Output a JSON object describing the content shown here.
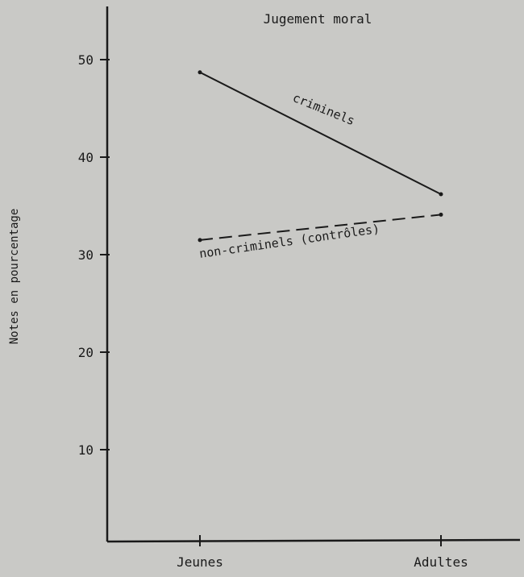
{
  "chart_data": {
    "type": "line",
    "title": "Jugement moral",
    "ylabel": "Notes en pourcentage",
    "xlabel": "",
    "categories": [
      "Jeunes",
      "Adultes"
    ],
    "yticks": [
      10,
      20,
      30,
      40,
      50
    ],
    "ylim": [
      3,
      55
    ],
    "series": [
      {
        "name": "criminels",
        "values": [
          48.7,
          36.2
        ],
        "style": "solid"
      },
      {
        "name": "non-criminels (contrôles)",
        "values": [
          31.5,
          34.1
        ],
        "style": "dashed"
      }
    ],
    "grid": false,
    "colors": {
      "background": "#c9c9c6",
      "ink": "#1a1a1a"
    }
  }
}
